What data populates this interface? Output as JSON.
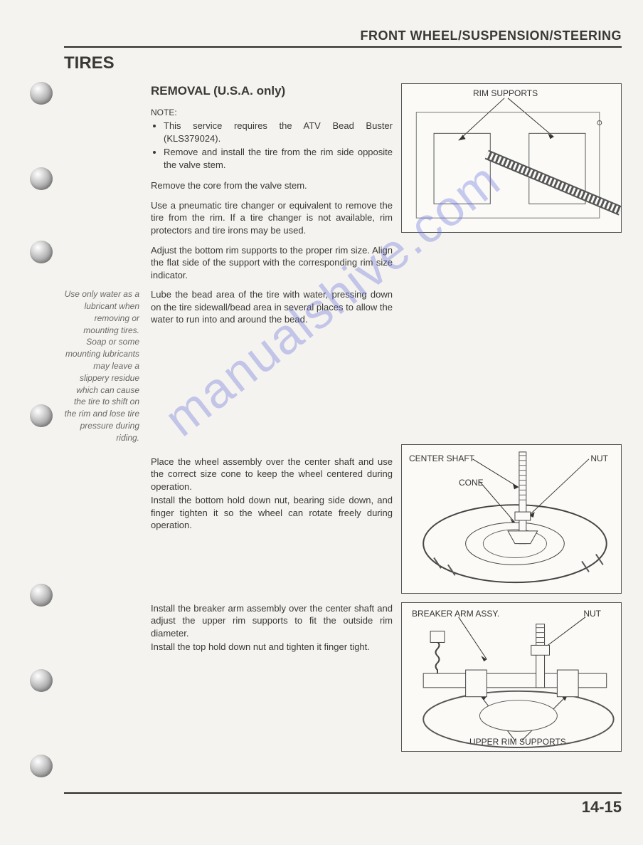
{
  "header": {
    "title": "FRONT WHEEL/SUSPENSION/STEERING"
  },
  "section_title": "TIRES",
  "subheading": "REMOVAL (U.S.A. only)",
  "note_label": "NOTE:",
  "notes": [
    "This service requires the ATV Bead Buster (KLS379024).",
    "Remove and install the tire from the rim side opposite the valve stem."
  ],
  "paras": {
    "p1": "Remove the core from the valve stem.",
    "p2": "Use a pneumatic tire changer or equivalent to remove the tire from the rim. If a tire changer is not available, rim protectors and tire irons may be used.",
    "p3": "Adjust the bottom rim supports to the proper rim size. Align the flat side of the support with the corresponding rim size indicator.",
    "p4": "Lube the bead area of the tire with water, pressing down on the tire sidewall/bead area in several places to allow the water to run into and around the bead.",
    "p5a": "Place the wheel assembly over the center shaft and use the correct size cone to keep the wheel centered during operation.",
    "p5b": "Install the bottom hold down nut, bearing side down, and finger tighten it so the wheel can rotate freely during operation.",
    "p6a": "Install the breaker arm assembly over the center shaft and adjust the upper rim supports to fit the outside rim diameter.",
    "p6b": "Install the top hold down nut and tighten it finger tight."
  },
  "sidenote": "Use only water as a lubricant when removing or mounting tires. Soap or some mounting lubricants may leave a slippery residue which can cause the tire to shift on the rim and lose tire pressure during riding.",
  "figures": {
    "fig1": {
      "label1": "RIM SUPPORTS"
    },
    "fig2": {
      "label1": "CENTER SHAFT",
      "label2": "NUT",
      "label3": "CONE"
    },
    "fig3": {
      "label1": "BREAKER ARM ASSY.",
      "label2": "NUT",
      "label3": "UPPER RIM SUPPORTS"
    }
  },
  "footer": {
    "page_number": "14-15"
  },
  "watermark": "manualshive.com",
  "holes_y": [
    115,
    235,
    338,
    568,
    820,
    940,
    1060
  ],
  "colors": {
    "text": "#3a3835",
    "rule": "#2a2a28",
    "watermark": "rgba(100,110,220,0.35)",
    "bg": "#f5f3ef"
  }
}
